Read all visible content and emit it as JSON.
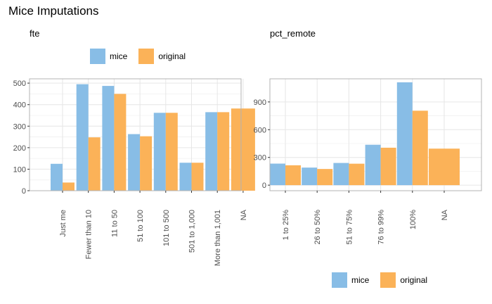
{
  "title": "Mice Imputations",
  "colors": {
    "mice": "#88bde6",
    "original": "#fbb258",
    "grid": "#e6e6e6",
    "panel_border": "#b3b3b3"
  },
  "legend": {
    "items": [
      {
        "label": "mice",
        "color": "#88bde6"
      },
      {
        "label": "original",
        "color": "#fbb258"
      }
    ]
  },
  "chart_data": [
    {
      "type": "bar",
      "title": "fte",
      "legend_position": "top",
      "categories": [
        "Just me",
        "Fewer than 10",
        "11 to 50",
        "51 to 100",
        "101 to 500",
        "501 to 1,000",
        "More than 1,001",
        "NA"
      ],
      "series": [
        {
          "name": "mice",
          "values": [
            125,
            495,
            487,
            263,
            362,
            130,
            365,
            null
          ]
        },
        {
          "name": "original",
          "values": [
            38,
            248,
            450,
            253,
            362,
            130,
            365,
            382
          ]
        }
      ],
      "ylim": [
        0,
        520
      ],
      "yticks": [
        0,
        100,
        200,
        300,
        400,
        500
      ],
      "grid": true
    },
    {
      "type": "bar",
      "title": "pct_remote",
      "legend_position": "bottom",
      "categories": [
        "1 to 25%",
        "26 to 50%",
        "51 to 75%",
        "76 to 99%",
        "100%",
        "NA"
      ],
      "series": [
        {
          "name": "mice",
          "values": [
            233,
            190,
            240,
            437,
            1112,
            null
          ]
        },
        {
          "name": "original",
          "values": [
            215,
            175,
            232,
            405,
            805,
            395
          ]
        }
      ],
      "ylim": [
        -60,
        1150
      ],
      "yticks": [
        0,
        300,
        600,
        900
      ],
      "grid": true
    }
  ]
}
